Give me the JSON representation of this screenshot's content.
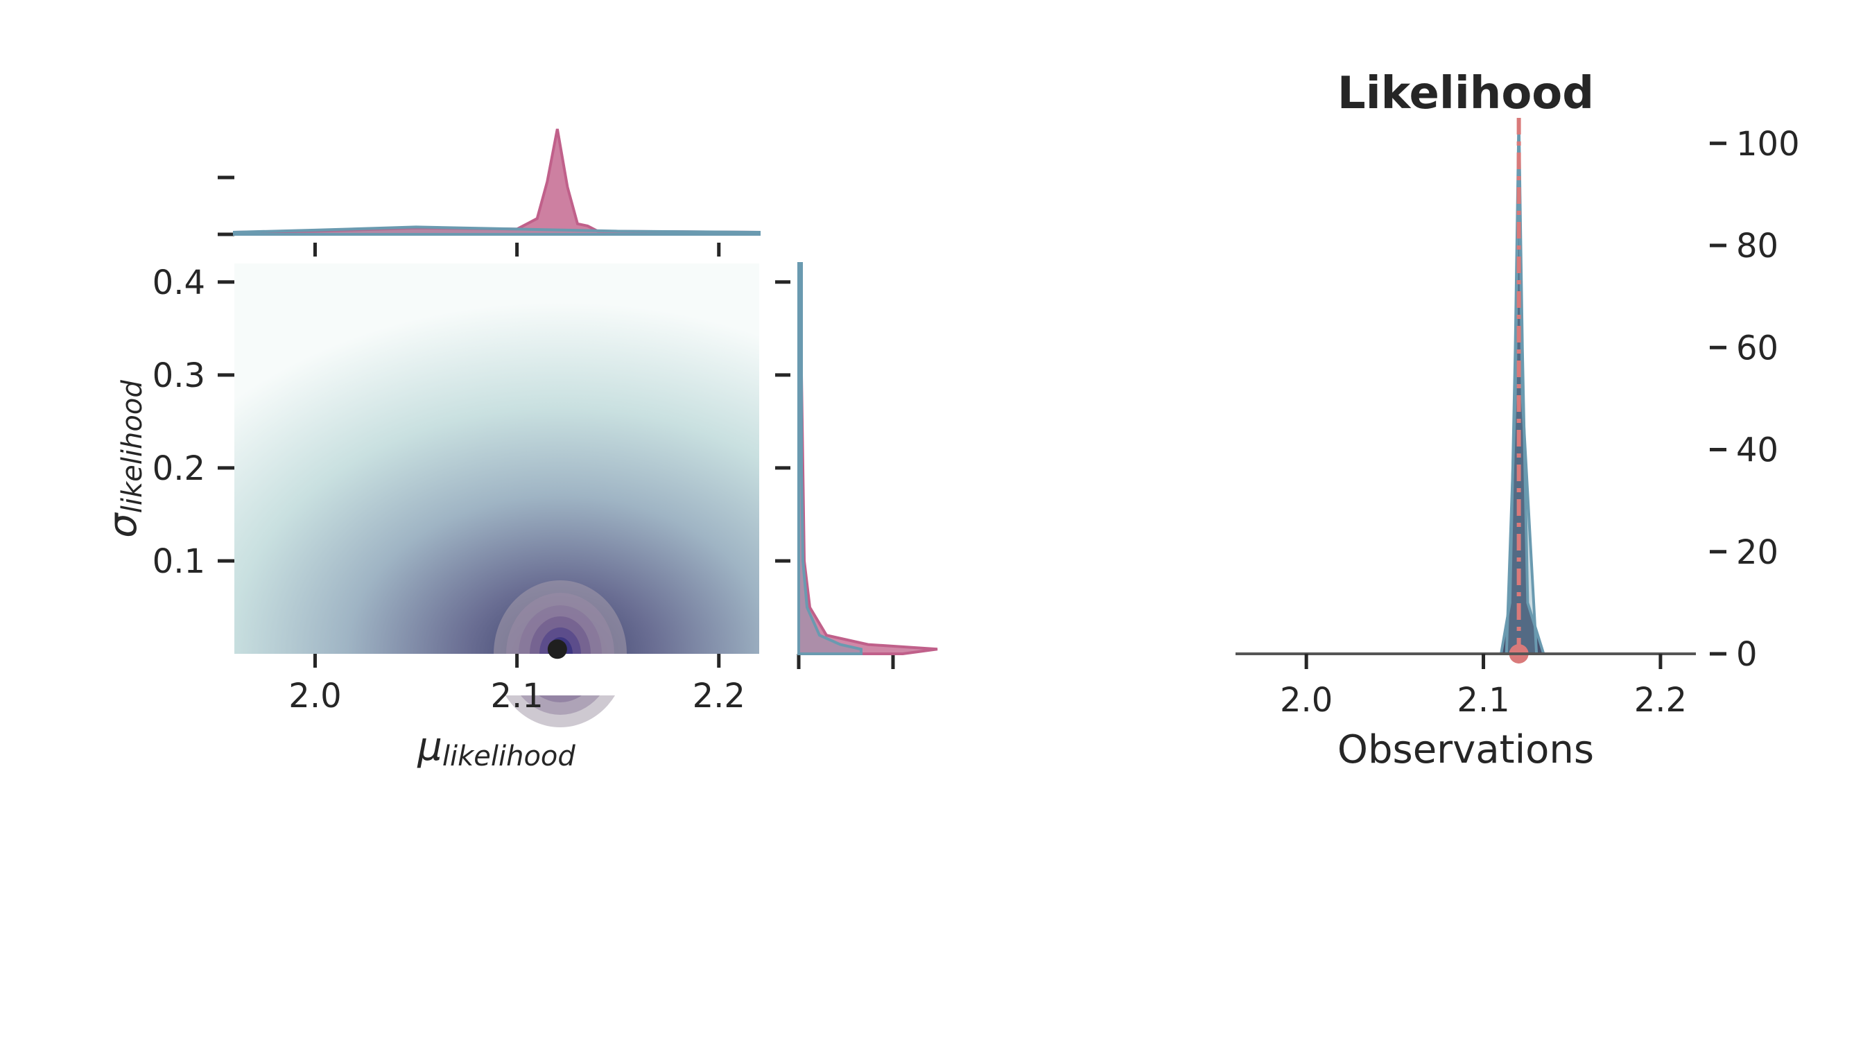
{
  "chart_data": [
    {
      "type": "heatmap",
      "subtype": "joint-kde-with-marginals",
      "xlabel_base": "μ",
      "xlabel_sub": "likelihood",
      "ylabel_base": "σ",
      "ylabel_sub": "likelihood",
      "x_ticks": [
        "2.0",
        "2.1",
        "2.2"
      ],
      "x_tick_values": [
        2.0,
        2.1,
        2.2
      ],
      "y_ticks": [
        "0.1",
        "0.2",
        "0.3",
        "0.4"
      ],
      "y_tick_values": [
        0.1,
        0.2,
        0.3,
        0.4
      ],
      "xlim": [
        1.96,
        2.22
      ],
      "ylim": [
        0.0,
        0.42
      ],
      "point_estimate": {
        "x": 2.12,
        "y": 0.005
      },
      "colors": {
        "density_high": "#3b3f6b",
        "density_low": "#e6f2f0",
        "series_a": "#c0608a",
        "series_b": "#6a9ab0"
      },
      "marginal_x": {
        "peak_x": 2.12,
        "series": [
          {
            "x": [
              1.96,
              2.0,
              2.05,
              2.1,
              2.11,
              2.115,
              2.12,
              2.125,
              2.13,
              2.135,
              2.14,
              2.22
            ],
            "y": [
              0.02,
              0.03,
              0.06,
              0.05,
              0.15,
              0.5,
              1.0,
              0.45,
              0.1,
              0.08,
              0.03,
              0.02
            ]
          },
          {
            "x": [
              1.96,
              2.0,
              2.05,
              2.1,
              2.15,
              2.22
            ],
            "y": [
              0.02,
              0.04,
              0.07,
              0.05,
              0.03,
              0.02
            ]
          }
        ]
      },
      "marginal_y": {
        "series": [
          {
            "y": [
              0.0,
              0.005,
              0.01,
              0.02,
              0.05,
              0.1,
              0.2,
              0.3,
              0.42
            ],
            "density": [
              0.75,
              1.0,
              0.5,
              0.2,
              0.08,
              0.04,
              0.03,
              0.02,
              0.02
            ]
          },
          {
            "y": [
              0.0,
              0.005,
              0.01,
              0.02,
              0.05,
              0.1,
              0.2,
              0.3,
              0.42
            ],
            "density": [
              0.45,
              0.45,
              0.3,
              0.15,
              0.06,
              0.03,
              0.02,
              0.02,
              0.02
            ]
          }
        ]
      }
    },
    {
      "type": "area",
      "title": "Likelihood",
      "xlabel": "Observations",
      "x_ticks": [
        "2.0",
        "2.1",
        "2.2"
      ],
      "x_tick_values": [
        2.0,
        2.1,
        2.2
      ],
      "y_ticks": [
        "0",
        "20",
        "40",
        "60",
        "80",
        "100"
      ],
      "y_tick_values": [
        0,
        20,
        40,
        60,
        80,
        100
      ],
      "xlim": [
        1.96,
        2.22
      ],
      "ylim": [
        0,
        105
      ],
      "y_axis_position": "right",
      "series": [
        {
          "x": [
            2.11,
            2.115,
            2.118,
            2.12,
            2.122,
            2.125,
            2.134
          ],
          "y": [
            0,
            10,
            60,
            105,
            60,
            10,
            0
          ],
          "color": "#3d4866"
        },
        {
          "x": [
            2.113,
            2.118,
            2.12,
            2.122,
            2.13
          ],
          "y": [
            0,
            50,
            104,
            50,
            0
          ],
          "color": "#6a9ab0"
        }
      ],
      "observed_line_x": 2.12,
      "observed_point": {
        "x": 2.12,
        "y": 0
      },
      "colors": {
        "fill": "#3d4866",
        "line": "#6a9ab0",
        "observed": "#d97a7a"
      }
    }
  ]
}
